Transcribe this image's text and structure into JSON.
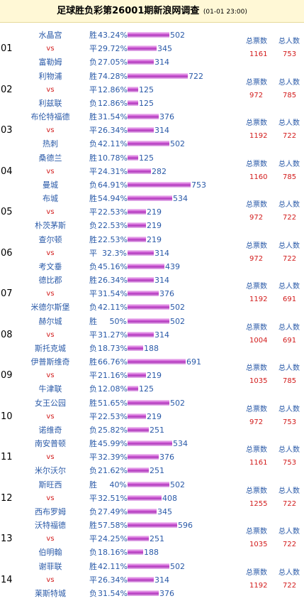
{
  "header": {
    "title": "足球胜负彩第26001期新浪网调查",
    "date": "(01-01 23:00)"
  },
  "labels": {
    "vs": "vs",
    "win": "胜",
    "draw": "平",
    "lose": "负",
    "total_votes": "总票数",
    "total_people": "总人数"
  },
  "colors": {
    "team_text": "#2a5aa8",
    "vs_text": "#d21a1a",
    "header_bg": "#fff8d6",
    "bar": "#c84fd0"
  },
  "matches": [
    {
      "no": "01",
      "home": "水晶宫",
      "away": "富勒姆",
      "win_pct": "43.24%",
      "win_cnt": 502,
      "draw_pct": "29.72%",
      "draw_cnt": 345,
      "lose_pct": "27.05%",
      "lose_cnt": 314,
      "total_votes": "1161",
      "total_people": "753"
    },
    {
      "no": "02",
      "home": "利物浦",
      "away": "利兹联",
      "win_pct": "74.28%",
      "win_cnt": 722,
      "draw_pct": "12.86%",
      "draw_cnt": 125,
      "lose_pct": "12.86%",
      "lose_cnt": 125,
      "total_votes": "972",
      "total_people": "785"
    },
    {
      "no": "03",
      "home": "布伦特福德",
      "away": "热刺",
      "win_pct": "31.54%",
      "win_cnt": 376,
      "draw_pct": "26.34%",
      "draw_cnt": 314,
      "lose_pct": "42.11%",
      "lose_cnt": 502,
      "total_votes": "1192",
      "total_people": "722"
    },
    {
      "no": "04",
      "home": "桑德兰",
      "away": "曼城",
      "win_pct": "10.78%",
      "win_cnt": 125,
      "draw_pct": "24.31%",
      "draw_cnt": 282,
      "lose_pct": "64.91%",
      "lose_cnt": 753,
      "total_votes": "1160",
      "total_people": "785"
    },
    {
      "no": "05",
      "home": "布城",
      "away": "朴茨茅斯",
      "win_pct": "54.94%",
      "win_cnt": 534,
      "draw_pct": "22.53%",
      "draw_cnt": 219,
      "lose_pct": "22.53%",
      "lose_cnt": 219,
      "total_votes": "972",
      "total_people": "722"
    },
    {
      "no": "06",
      "home": "查尔顿",
      "away": "考文垂",
      "win_pct": "22.53%",
      "win_cnt": 219,
      "draw_pct": "32.3%",
      "draw_cnt": 314,
      "lose_pct": "45.16%",
      "lose_cnt": 439,
      "total_votes": "972",
      "total_people": "722"
    },
    {
      "no": "07",
      "home": "德比郡",
      "away": "米德尔斯堡",
      "win_pct": "26.34%",
      "win_cnt": 314,
      "draw_pct": "31.54%",
      "draw_cnt": 376,
      "lose_pct": "42.11%",
      "lose_cnt": 502,
      "total_votes": "1192",
      "total_people": "691"
    },
    {
      "no": "08",
      "home": "赫尔城",
      "away": "斯托克城",
      "win_pct": "50%",
      "win_cnt": 502,
      "draw_pct": "31.27%",
      "draw_cnt": 314,
      "lose_pct": "18.73%",
      "lose_cnt": 188,
      "total_votes": "1004",
      "total_people": "691"
    },
    {
      "no": "09",
      "home": "伊普斯维奇",
      "away": "牛津联",
      "win_pct": "66.76%",
      "win_cnt": 691,
      "draw_pct": "21.16%",
      "draw_cnt": 219,
      "lose_pct": "12.08%",
      "lose_cnt": 125,
      "total_votes": "1035",
      "total_people": "785"
    },
    {
      "no": "10",
      "home": "女王公园",
      "away": "诺维奇",
      "win_pct": "51.65%",
      "win_cnt": 502,
      "draw_pct": "22.53%",
      "draw_cnt": 219,
      "lose_pct": "25.82%",
      "lose_cnt": 251,
      "total_votes": "972",
      "total_people": "753"
    },
    {
      "no": "11",
      "home": "南安普顿",
      "away": "米尔沃尔",
      "win_pct": "45.99%",
      "win_cnt": 534,
      "draw_pct": "32.39%",
      "draw_cnt": 376,
      "lose_pct": "21.62%",
      "lose_cnt": 251,
      "total_votes": "1161",
      "total_people": "753"
    },
    {
      "no": "12",
      "home": "斯旺西",
      "away": "西布罗姆",
      "win_pct": "40%",
      "win_cnt": 502,
      "draw_pct": "32.51%",
      "draw_cnt": 408,
      "lose_pct": "27.49%",
      "lose_cnt": 345,
      "total_votes": "1255",
      "total_people": "722"
    },
    {
      "no": "13",
      "home": "沃特福德",
      "away": "伯明翰",
      "win_pct": "57.58%",
      "win_cnt": 596,
      "draw_pct": "24.25%",
      "draw_cnt": 251,
      "lose_pct": "18.16%",
      "lose_cnt": 188,
      "total_votes": "1035",
      "total_people": "722"
    },
    {
      "no": "14",
      "home": "谢菲联",
      "away": "莱斯特城",
      "win_pct": "42.11%",
      "win_cnt": 502,
      "draw_pct": "26.34%",
      "draw_cnt": 314,
      "lose_pct": "31.54%",
      "lose_cnt": 376,
      "total_votes": "1192",
      "total_people": "722"
    }
  ]
}
